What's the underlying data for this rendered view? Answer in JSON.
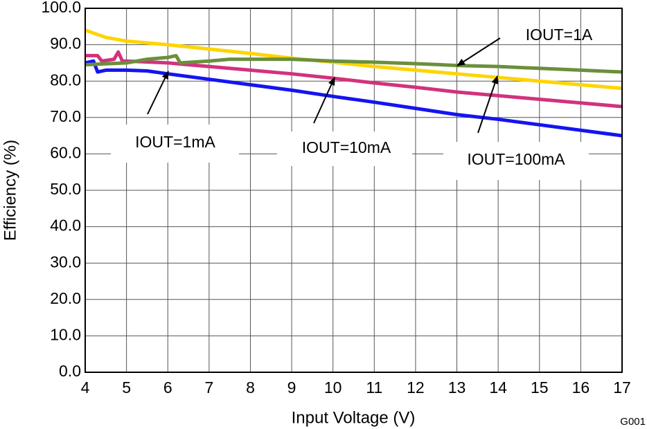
{
  "chart_data": {
    "type": "line",
    "xlabel": "Input Voltage (V)",
    "ylabel": "Efficiency (%)",
    "figure_id": "G001",
    "xlim": [
      4,
      17
    ],
    "xticks": [
      4,
      5,
      6,
      7,
      8,
      9,
      10,
      11,
      12,
      13,
      14,
      15,
      16,
      17
    ],
    "ylim": [
      0,
      100
    ],
    "yticks": [
      {
        "value": 0,
        "label": "0.0"
      },
      {
        "value": 10,
        "label": "10.0"
      },
      {
        "value": 20,
        "label": "20.0"
      },
      {
        "value": 30,
        "label": "30.0"
      },
      {
        "value": 40,
        "label": "40.0"
      },
      {
        "value": 50,
        "label": "50.0"
      },
      {
        "value": 60,
        "label": "60.0"
      },
      {
        "value": 70,
        "label": "70.0"
      },
      {
        "value": 80,
        "label": "80.0"
      },
      {
        "value": 90,
        "label": "90.0"
      },
      {
        "value": {
          "v": 100
        },
        "label": "100.0"
      }
    ],
    "grid": true,
    "series": [
      {
        "name": "IOUT=1mA",
        "color": "#1414f0",
        "x": [
          4,
          4.2,
          4.3,
          4.5,
          5,
          5.5,
          6,
          7,
          8,
          9,
          10,
          11,
          12,
          13,
          14,
          15,
          16,
          17
        ],
        "values": [
          85,
          85.5,
          82.5,
          83,
          83,
          82.8,
          82,
          80.5,
          79,
          77.5,
          75.8,
          74.2,
          72.5,
          70.8,
          69.5,
          68,
          66.5,
          65
        ]
      },
      {
        "name": "IOUT=10mA",
        "color": "#d2327d",
        "x": [
          4,
          4.3,
          4.4,
          4.7,
          4.8,
          4.9,
          5,
          6,
          7,
          8,
          9,
          10,
          11,
          12,
          13,
          14,
          15,
          16,
          17
        ],
        "values": [
          87,
          87,
          85.5,
          86,
          88,
          85.5,
          85.5,
          85,
          84,
          83,
          82,
          80.8,
          79.5,
          78.3,
          77,
          76,
          75,
          74,
          73
        ]
      },
      {
        "name": "IOUT=100mA",
        "color": "#ffd400",
        "x": [
          4,
          4.5,
          5,
          6,
          7,
          8,
          9,
          10,
          11,
          12,
          13,
          14,
          15,
          16,
          17
        ],
        "values": [
          94,
          92,
          91,
          90,
          88.8,
          87.6,
          86.3,
          85.2,
          84,
          83,
          82,
          81,
          80,
          79,
          78
        ]
      },
      {
        "name": "IOUT=1A",
        "color": "#6b8f3c",
        "x": [
          4,
          5,
          5.5,
          6,
          6.2,
          6.3,
          7,
          7.5,
          8,
          9,
          10,
          11,
          12,
          13,
          14,
          15,
          16,
          17
        ],
        "values": [
          84.5,
          85,
          86,
          86.5,
          87,
          85,
          85.5,
          86,
          86,
          86,
          85.5,
          85.2,
          84.8,
          84.3,
          84,
          83.5,
          83,
          82.5
        ]
      }
    ]
  }
}
